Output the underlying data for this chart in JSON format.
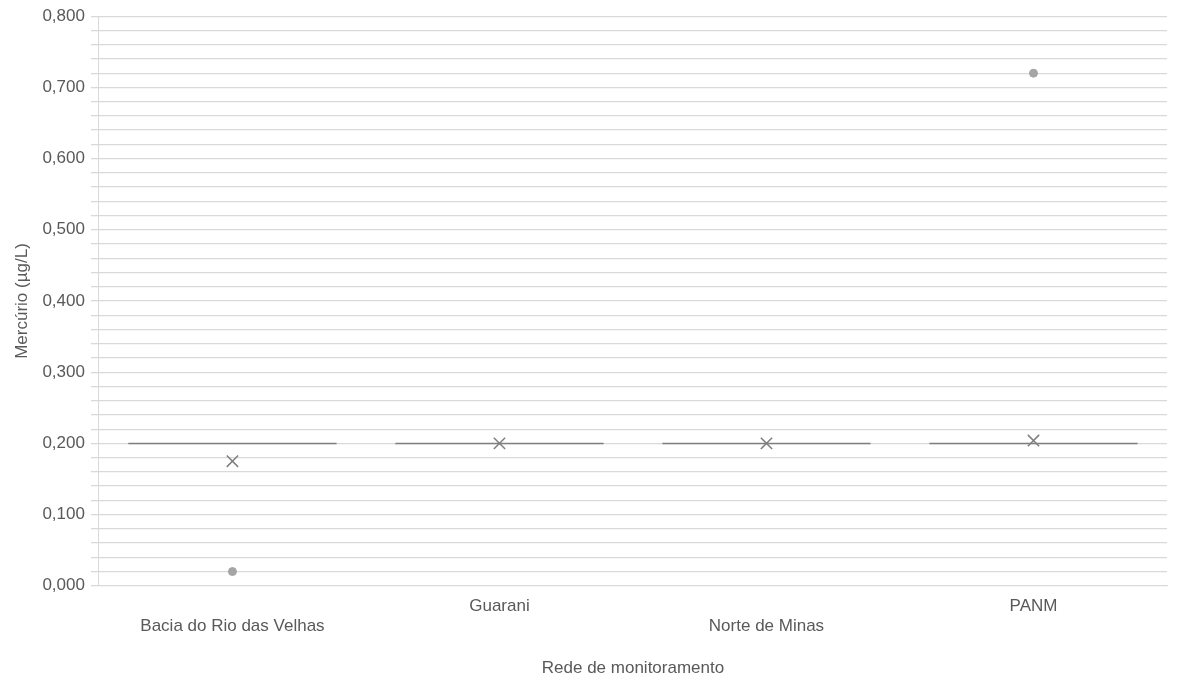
{
  "chart_data": {
    "type": "box",
    "xlabel": "Rede de monitoramento",
    "ylabel": "Mercúrio (µg/L)",
    "categories": [
      "Bacia do Rio das Velhas",
      "Guarani",
      "Norte de Minas",
      "PANM"
    ],
    "color": "#7f7f7f",
    "boxes": [
      {
        "low": 0.2,
        "q1": 0.2,
        "median": 0.2,
        "q3": 0.2,
        "high": 0.2,
        "mean": 0.175,
        "outliers": [
          0.02
        ]
      },
      {
        "low": 0.2,
        "q1": 0.2,
        "median": 0.2,
        "q3": 0.2,
        "high": 0.2,
        "mean": 0.2
      },
      {
        "low": 0.2,
        "q1": 0.2,
        "median": 0.2,
        "q3": 0.2,
        "high": 0.2,
        "mean": 0.2
      },
      {
        "low": 0.2,
        "q1": 0.2,
        "median": 0.2,
        "q3": 0.2,
        "high": 0.2,
        "mean": 0.204,
        "outliers": [
          0.72
        ]
      }
    ],
    "ylim": [
      0,
      0.8
    ],
    "yticks": [
      {
        "value": 0,
        "label": "0,000"
      },
      {
        "value": 0.02,
        "label": null
      },
      {
        "value": 0.04,
        "label": null
      },
      {
        "value": 0.06,
        "label": null
      },
      {
        "value": 0.08,
        "label": null
      },
      {
        "value": 0.1,
        "label": "0,100"
      },
      {
        "value": 0.12,
        "label": null
      },
      {
        "value": 0.14,
        "label": null
      },
      {
        "value": 0.16,
        "label": null
      },
      {
        "value": 0.18,
        "label": null
      },
      {
        "value": 0.2,
        "label": "0,200"
      },
      {
        "value": 0.22,
        "label": null
      },
      {
        "value": 0.24,
        "label": null
      },
      {
        "value": 0.26,
        "label": null
      },
      {
        "value": 0.28,
        "label": null
      },
      {
        "value": 0.3,
        "label": "0,300"
      },
      {
        "value": 0.32,
        "label": null
      },
      {
        "value": 0.34,
        "label": null
      },
      {
        "value": 0.36,
        "label": null
      },
      {
        "value": 0.38,
        "label": null
      },
      {
        "value": 0.4,
        "label": "0,400"
      },
      {
        "value": 0.42,
        "label": null
      },
      {
        "value": 0.44,
        "label": null
      },
      {
        "value": 0.46,
        "label": null
      },
      {
        "value": 0.48,
        "label": null
      },
      {
        "value": 0.5,
        "label": "0,500"
      },
      {
        "value": 0.52,
        "label": null
      },
      {
        "value": 0.54,
        "label": null
      },
      {
        "value": 0.56,
        "label": null
      },
      {
        "value": 0.58,
        "label": null
      },
      {
        "value": 0.6,
        "label": "0,600"
      },
      {
        "value": 0.62,
        "label": null
      },
      {
        "value": 0.64,
        "label": null
      },
      {
        "value": 0.66,
        "label": null
      },
      {
        "value": 0.68,
        "label": null
      },
      {
        "value": 0.7,
        "label": "0,700"
      },
      {
        "value": 0.72,
        "label": null
      },
      {
        "value": 0.74,
        "label": null
      },
      {
        "value": 0.76,
        "label": null
      },
      {
        "value": 0.78,
        "label": null
      },
      {
        "value": 0.8,
        "label": "0,800"
      }
    ],
    "grid": true
  }
}
